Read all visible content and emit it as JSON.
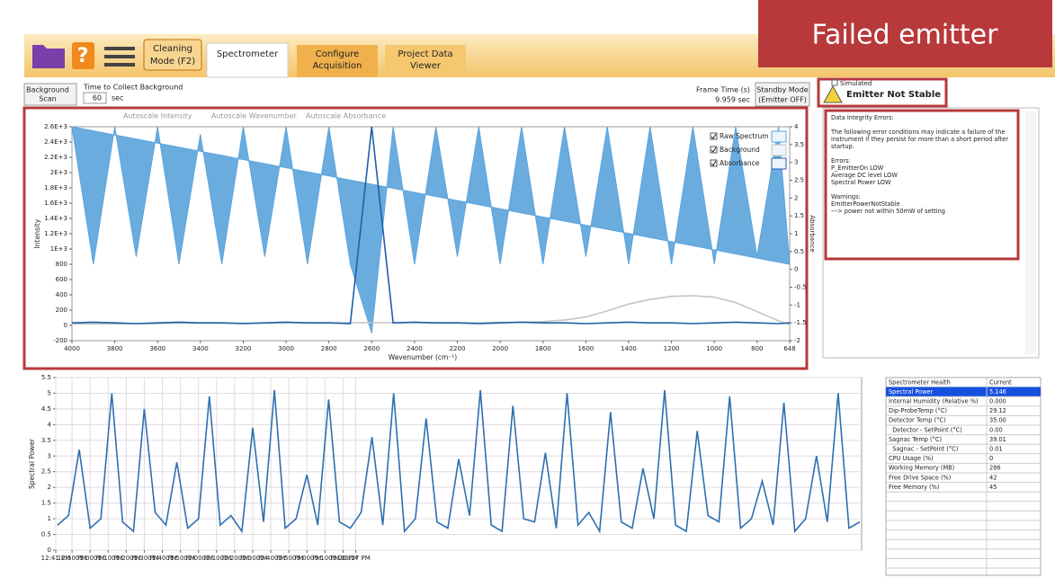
{
  "annotation": "Failed emitter",
  "toolbar": {
    "cleaning_mode": [
      "Cleaning",
      "Mode (F2)"
    ],
    "tabs": [
      [
        "Spectrometer"
      ],
      [
        "Configure",
        "Acquisition"
      ],
      [
        "Project Data",
        "Viewer"
      ]
    ]
  },
  "controls": {
    "background_scan": [
      "Background",
      "Scan"
    ],
    "time_label": "Time to Collect Background",
    "time_value": "60",
    "time_unit": "sec",
    "frame_time_label": "Frame Time (s)",
    "frame_time_value": "9.959 sec",
    "standby": [
      "Standby Mode",
      "(Emitter OFF)"
    ]
  },
  "chart_tools": [
    "Autoscale Intensity",
    "Autoscale Wavenumber",
    "Autoscale Absorbance"
  ],
  "status": {
    "simulated": "Simulated",
    "emitter": "Emitter Not Stable"
  },
  "messages": [
    [
      "Data Integrity Errors:"
    ],
    [
      "The following error conditions may indicate a failure of the",
      "instrument if they persist for more than a short period after",
      "startup."
    ],
    [
      "Errors:",
      "P_EmitterOn LOW",
      "Average DC level LOW",
      "Spectral Power LOW"
    ],
    [
      "Warnings:",
      "EmitterPowerNotStable",
      "---> power not within 50mW of setting"
    ]
  ],
  "health_table": {
    "header": [
      "Spectrometer Health",
      "Current"
    ],
    "rows": [
      [
        "Spectral Power",
        "5.146"
      ],
      [
        "Internal Humidity (Relative %)",
        "0.000"
      ],
      [
        "Dip-ProbeTemp (°C)",
        "29.12"
      ],
      [
        "Detector Temp (°C)",
        "35.00"
      ],
      [
        "  Detector - SetPoint (°C)",
        "0.00"
      ],
      [
        "Sagnac Temp (°C)",
        "39.01"
      ],
      [
        "  Sagnac - SetPoint (°C)",
        "0.01"
      ],
      [
        "CPU Usage (%)",
        "0"
      ],
      [
        "Working Memory (MB)",
        "286"
      ],
      [
        "Free Drive Space (%)",
        "42"
      ],
      [
        "Free Memory (%)",
        "45"
      ]
    ]
  },
  "chart_data": [
    {
      "type": "line",
      "x_label": "Wavenumber (cm⁻¹)",
      "y_label": "Intensity",
      "y2_label": "Absorbance",
      "grid": false,
      "legend": "upper right",
      "x": [
        4000,
        3900,
        3800,
        3700,
        3600,
        3500,
        3400,
        3300,
        3200,
        3100,
        3000,
        2900,
        2800,
        2700,
        2600,
        2500,
        2400,
        2300,
        2200,
        2100,
        2000,
        1900,
        1800,
        1700,
        1600,
        1500,
        1400,
        1300,
        1200,
        1100,
        1000,
        900,
        800,
        700,
        648
      ],
      "xlim": [
        4000,
        648
      ],
      "xticks": [
        4000,
        3800,
        3600,
        3400,
        3200,
        3000,
        2800,
        2600,
        2400,
        2200,
        2000,
        1800,
        1600,
        1400,
        1200,
        1000,
        800,
        648
      ],
      "ylim": [
        -200,
        2600
      ],
      "yticks": [
        -200,
        0,
        200,
        400,
        600,
        800,
        {
          "value": 1000,
          "label": "1E+3"
        },
        {
          "value": 1200,
          "label": "1.2E+3"
        },
        {
          "value": 1400,
          "label": "1.4E+3"
        },
        {
          "value": 1600,
          "label": "1.6E+3"
        },
        {
          "value": 1800,
          "label": "1.8E+3"
        },
        {
          "value": 2000,
          "label": "2E+3"
        },
        {
          "value": 2200,
          "label": "2.2E+3"
        },
        {
          "value": 2400,
          "label": "2.4E+3"
        },
        {
          "value": 2600,
          "label": "2.6E+3"
        }
      ],
      "y2lim": [
        -2,
        4
      ],
      "y2ticks": [
        -2,
        -1.5,
        -1,
        -0.5,
        0,
        0.5,
        1,
        1.5,
        2,
        2.5,
        3,
        3.5,
        4
      ],
      "series": [
        {
          "name": "Raw Spectrum",
          "color": "#5ba3dc",
          "fill": true,
          "values": [
            2600,
            800,
            2600,
            900,
            2600,
            800,
            2500,
            800,
            2600,
            900,
            2600,
            800,
            2600,
            800,
            -100,
            2600,
            800,
            2600,
            900,
            2600,
            800,
            2600,
            800,
            2600,
            900,
            2600,
            800,
            2600,
            800,
            2600,
            800,
            2600,
            900,
            2600,
            800
          ]
        },
        {
          "name": "Background",
          "color": "#c4c4c4",
          "values": [
            20,
            20,
            20,
            25,
            25,
            30,
            30,
            30,
            30,
            30,
            35,
            35,
            35,
            35,
            35,
            35,
            35,
            35,
            35,
            35,
            40,
            40,
            50,
            70,
            110,
            190,
            280,
            340,
            380,
            390,
            370,
            300,
            180,
            60,
            10
          ]
        },
        {
          "name": "Absorbance",
          "color": "#1f5fa8",
          "axis": "y2",
          "values": [
            -1.5,
            -1.48,
            -1.5,
            -1.52,
            -1.5,
            -1.48,
            -1.5,
            -1.5,
            -1.52,
            -1.5,
            -1.48,
            -1.5,
            -1.5,
            -1.52,
            4,
            -1.5,
            -1.48,
            -1.5,
            -1.5,
            -1.52,
            -1.5,
            -1.48,
            -1.5,
            -1.5,
            -1.52,
            -1.5,
            -1.48,
            -1.5,
            -1.5,
            -1.52,
            -1.5,
            -1.48,
            -1.5,
            -1.52,
            -1.5
          ]
        }
      ]
    },
    {
      "type": "line",
      "y_label": "Spectral Power",
      "grid": true,
      "x": [
        762,
        768,
        774,
        780,
        786,
        792,
        798,
        804,
        810,
        816,
        822,
        828,
        834,
        840,
        846,
        852,
        858,
        864,
        870,
        876,
        882,
        888,
        894,
        900,
        906,
        912,
        918,
        924,
        930,
        936,
        942,
        948,
        954,
        960,
        966,
        972,
        978,
        984,
        990,
        996,
        1002,
        1008,
        1014,
        1020,
        1026,
        1032,
        1038,
        1044,
        1050,
        1056,
        1062,
        1068,
        1074,
        1080,
        1086,
        1092,
        1098,
        1104,
        1110,
        1116,
        1122,
        1128,
        1134,
        1140,
        1146,
        1152,
        1158,
        1164,
        1170,
        1176,
        1182,
        1188,
        1194,
        1200,
        1206
      ],
      "xlim": [
        761,
        1207
      ],
      "xticks": [
        {
          "value": 761,
          "label": "12:41 PM"
        },
        {
          "value": 770,
          "label": "12:50 PM"
        },
        {
          "value": 780,
          "label": "01:00 PM"
        },
        {
          "value": 790,
          "label": "01:10 PM"
        },
        {
          "value": 800,
          "label": "01:20 PM"
        },
        {
          "value": 810,
          "label": "01:30 PM"
        },
        {
          "value": 820,
          "label": "01:40 PM"
        },
        {
          "value": 830,
          "label": "01:50 PM"
        },
        {
          "value": 840,
          "label": "02:00 PM"
        },
        {
          "value": 850,
          "label": "02:10 PM"
        },
        {
          "value": 860,
          "label": "02:20 PM"
        },
        {
          "value": 870,
          "label": "02:30 PM"
        },
        {
          "value": 880,
          "label": "02:40 PM"
        },
        {
          "value": 890,
          "label": "02:50 PM"
        },
        {
          "value": 900,
          "label": "03:00 PM"
        },
        {
          "value": 910,
          "label": "03:10 PM"
        },
        {
          "value": 920,
          "label": "03:20 PM"
        },
        {
          "value": 927,
          "label": "03:27 PM"
        }
      ],
      "ylim": [
        0,
        5.5
      ],
      "yticks": [
        0,
        0.5,
        1,
        1.5,
        2,
        2.5,
        3,
        3.5,
        4,
        4.5,
        5,
        5.5
      ],
      "series": [
        {
          "color": "#2f6fb0",
          "values": [
            0.8,
            1.1,
            3.2,
            0.7,
            1.0,
            5.0,
            0.9,
            0.6,
            4.5,
            1.2,
            0.8,
            2.8,
            0.7,
            1.0,
            4.9,
            0.8,
            1.1,
            0.6,
            3.9,
            0.9,
            5.1,
            0.7,
            1.0,
            2.4,
            0.8,
            4.8,
            0.9,
            0.7,
            1.2,
            3.6,
            0.8,
            5.0,
            0.6,
            1.0,
            4.2,
            0.9,
            0.7,
            2.9,
            1.1,
            5.1,
            0.8,
            0.6,
            4.6,
            1.0,
            0.9,
            3.1,
            0.7,
            5.0,
            0.8,
            1.2,
            0.6,
            4.4,
            0.9,
            0.7,
            2.6,
            1.0,
            5.1,
            0.8,
            0.6,
            3.8,
            1.1,
            0.9,
            4.9,
            0.7,
            1.0,
            2.2,
            0.8,
            4.7,
            0.6,
            1.0,
            3.0,
            0.9,
            5.0,
            0.7,
            0.9
          ]
        }
      ]
    }
  ]
}
